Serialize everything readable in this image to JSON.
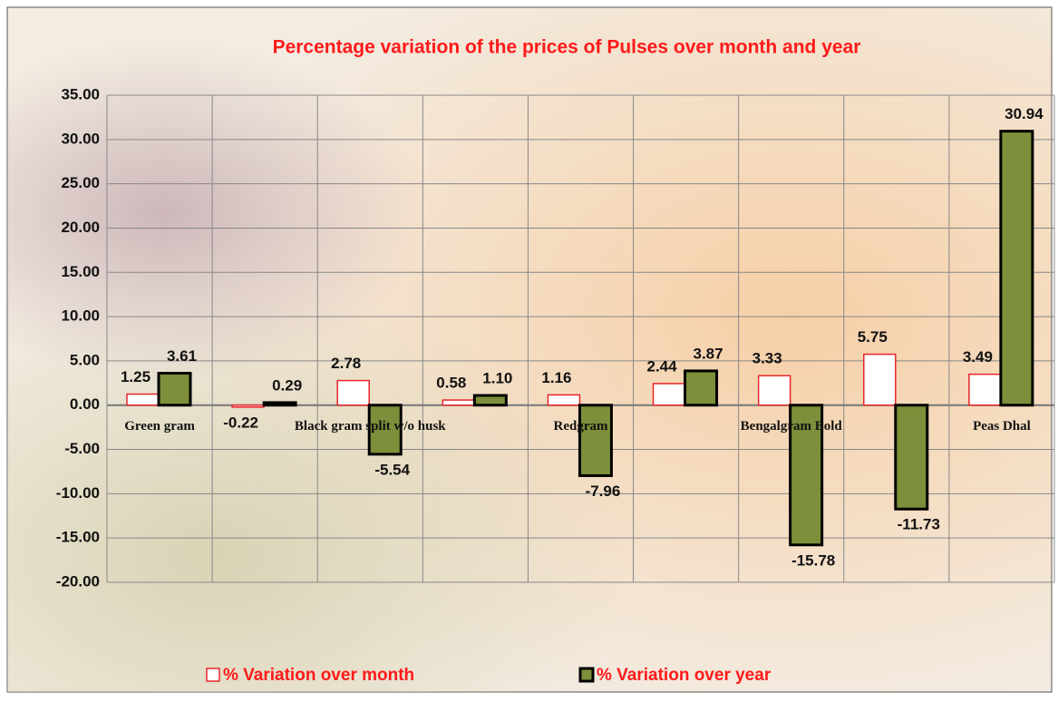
{
  "chart_data": {
    "type": "bar",
    "title": "Percentage variation of the prices of Pulses over month and year",
    "categories": [
      "Green gram",
      null,
      "Black gram  split w/o husk",
      null,
      "Redgram",
      null,
      "Bengalgram Bold",
      null,
      "Peas Dhal"
    ],
    "series": [
      {
        "name": "% Variation over month",
        "color": "#ffffff",
        "stroke": "#e8262a",
        "values": [
          1.25,
          -0.22,
          2.78,
          0.58,
          1.16,
          2.44,
          3.33,
          5.75,
          3.49
        ],
        "value_labels": [
          "1.25",
          "-0.22",
          "2.78",
          "0.58",
          "1.16",
          "2.44",
          "3.33",
          "5.75",
          "3.49"
        ]
      },
      {
        "name": "% Variation over year",
        "color": "#7d8f3a",
        "stroke": "#000000",
        "values": [
          3.61,
          0.29,
          -5.54,
          1.1,
          -7.96,
          3.87,
          -15.78,
          -11.73,
          30.94
        ],
        "value_labels": [
          "3.61",
          "0.29",
          "-5.54",
          "1.10",
          "-7.96",
          "3.87",
          "-15.78",
          "-11.73",
          "30.94"
        ]
      }
    ],
    "ylim": [
      -20,
      35
    ],
    "yticks": [
      {
        "value": -20,
        "label": "-20.00"
      },
      {
        "value": -15,
        "label": "-15.00"
      },
      {
        "value": -10,
        "label": "-10.00"
      },
      {
        "value": -5,
        "label": "-5.00"
      },
      {
        "value": 0,
        "label": "0.00"
      },
      {
        "value": 5,
        "label": "5.00"
      },
      {
        "value": 10,
        "label": "10.00"
      },
      {
        "value": 15,
        "label": "15.00"
      },
      {
        "value": 20,
        "label": "20.00"
      },
      {
        "value": 25,
        "label": "25.00"
      },
      {
        "value": 30,
        "label": "30.00"
      },
      {
        "value": 35,
        "label": "35.00"
      }
    ],
    "grid": true
  }
}
